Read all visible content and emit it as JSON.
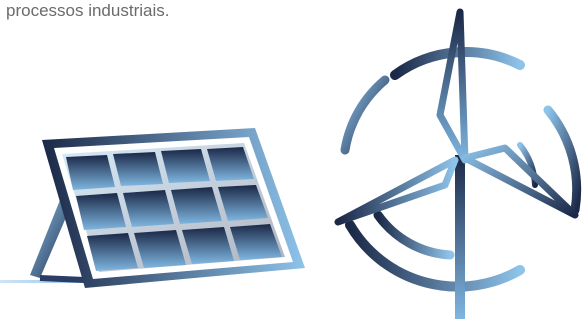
{
  "text": "processos industriais."
}
